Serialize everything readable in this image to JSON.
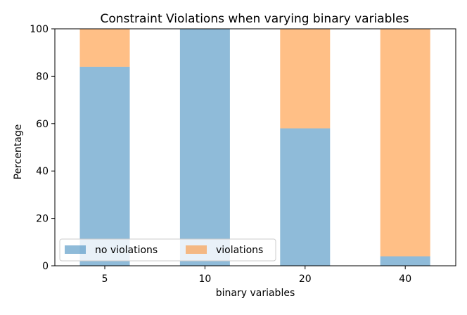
{
  "chart_data": {
    "type": "bar",
    "stacked": true,
    "title": "Constraint Violations when varying binary variables",
    "xlabel": "binary variables",
    "ylabel": "Percentage",
    "categories": [
      "5",
      "10",
      "20",
      "40"
    ],
    "ylim": [
      0,
      100
    ],
    "yticks": [
      0,
      20,
      40,
      60,
      80,
      100
    ],
    "grid": false,
    "legend_placement": "lower-left",
    "series": [
      {
        "name": "no violations",
        "values": [
          84,
          100,
          58,
          4
        ],
        "color": "#1f77b4",
        "alpha": 0.5
      },
      {
        "name": "violations",
        "values": [
          16,
          0,
          42,
          96
        ],
        "color": "#ff7f0e",
        "alpha": 0.5
      }
    ]
  }
}
